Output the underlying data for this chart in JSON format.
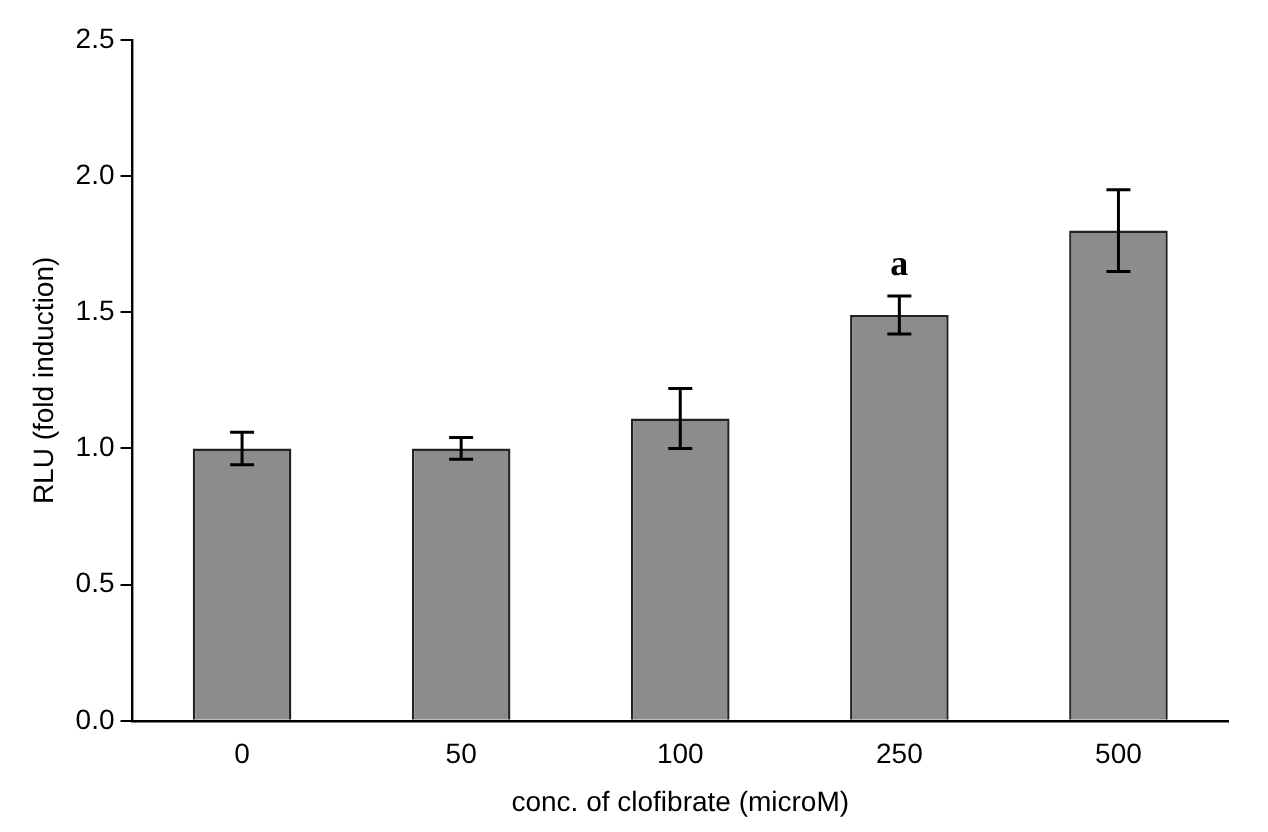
{
  "chart_data": {
    "type": "bar",
    "xlabel": "conc. of clofibrate (microM)",
    "ylabel": "RLU (fold induction)",
    "categories": [
      "0",
      "50",
      "100",
      "250",
      "500"
    ],
    "values": [
      1.0,
      1.0,
      1.11,
      1.49,
      1.8
    ],
    "errors": [
      0.06,
      0.04,
      0.11,
      0.07,
      0.15
    ],
    "color": "#8c8c8c",
    "ylim": [
      0,
      2.5
    ],
    "yticks": [
      {
        "value": 0,
        "label": "0.0"
      },
      {
        "value": 0.5,
        "label": "0.5"
      },
      {
        "value": 1,
        "label": "1.0"
      },
      {
        "value": 1.5,
        "label": "1.5"
      },
      {
        "value": 2,
        "label": "2.0"
      },
      {
        "value": 2.5,
        "label": "2.5"
      }
    ],
    "grid": false,
    "legend": false,
    "annotations": [
      {
        "text": "a",
        "x": "250",
        "y": 1.49
      }
    ]
  }
}
